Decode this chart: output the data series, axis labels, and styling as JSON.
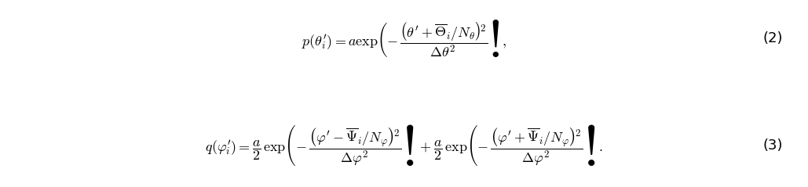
{
  "eq2_latex": "$p(\\theta_i^{\\prime}) = a \\exp\\!\\left(-\\,\\dfrac{\\left(\\theta^{\\prime} + \\overline{\\Theta}_i/N_{\\theta}\\right)^{\\!2}}{\\Delta\\theta^2}\\right),$",
  "eq3_latex": "$q(\\varphi_i^{\\prime}) = \\dfrac{a}{2}\\,\\exp\\!\\left(-\\,\\dfrac{\\left(\\varphi^{\\prime} - \\overline{\\Psi}_i/N_{\\varphi}\\right)^{\\!2}}{\\Delta\\varphi^2}\\right) + \\dfrac{a}{2}\\,\\exp\\!\\left(-\\,\\dfrac{\\left(\\varphi^{\\prime} + \\overline{\\Psi}_i/N_{\\varphi}\\right)^{\\!2}}{\\Delta\\varphi^2}\\right).$",
  "eq2_number": "(2)",
  "eq3_number": "(3)",
  "background_color": "#ffffff",
  "text_color": "#000000",
  "fontsize": 13,
  "fig_width": 10.29,
  "fig_height": 2.39,
  "dpi": 100
}
